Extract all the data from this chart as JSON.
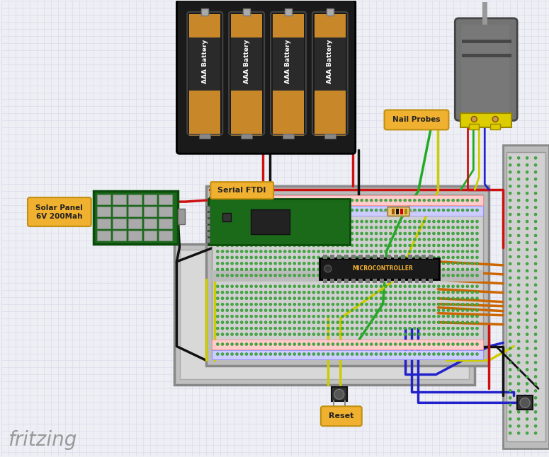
{
  "bg_color": "#eeeef5",
  "grid_color": "#d8d8e8",
  "fritzing_text": "fritzing",
  "solar_panel_label": "Solar Panel\n6V 200Mah",
  "serial_ftdi_label": "Serial FTDI",
  "nail_probes_label": "Nail Probes",
  "reset_label": "Reset",
  "microcontroller_label": "MICROCONTROLLER",
  "battery_case_color": "#1a1a1a",
  "battery_body_top": "#c8882a",
  "battery_body_mid": "#333333",
  "battery_body_bot": "#c8882a",
  "motor_body_color": "#666666",
  "motor_dark": "#444444",
  "motor_shaft": "#999999",
  "motor_yellow": "#ddcc00",
  "breadboard_bg": "#c8c8c8",
  "breadboard_inner": "#d8d8d8",
  "hole_color": "#44aa44",
  "hole_edge": "#228822",
  "ftdi_green": "#1a6a1a",
  "chip_black": "#222222",
  "label_yellow": "#f0b030",
  "label_text": "#222222",
  "wire_red": "#cc1111",
  "wire_black": "#111111",
  "wire_green": "#22aa22",
  "wire_yellow": "#cccc00",
  "wire_blue": "#2222cc",
  "wire_orange": "#cc6600",
  "resistor_body": "#e8c878"
}
